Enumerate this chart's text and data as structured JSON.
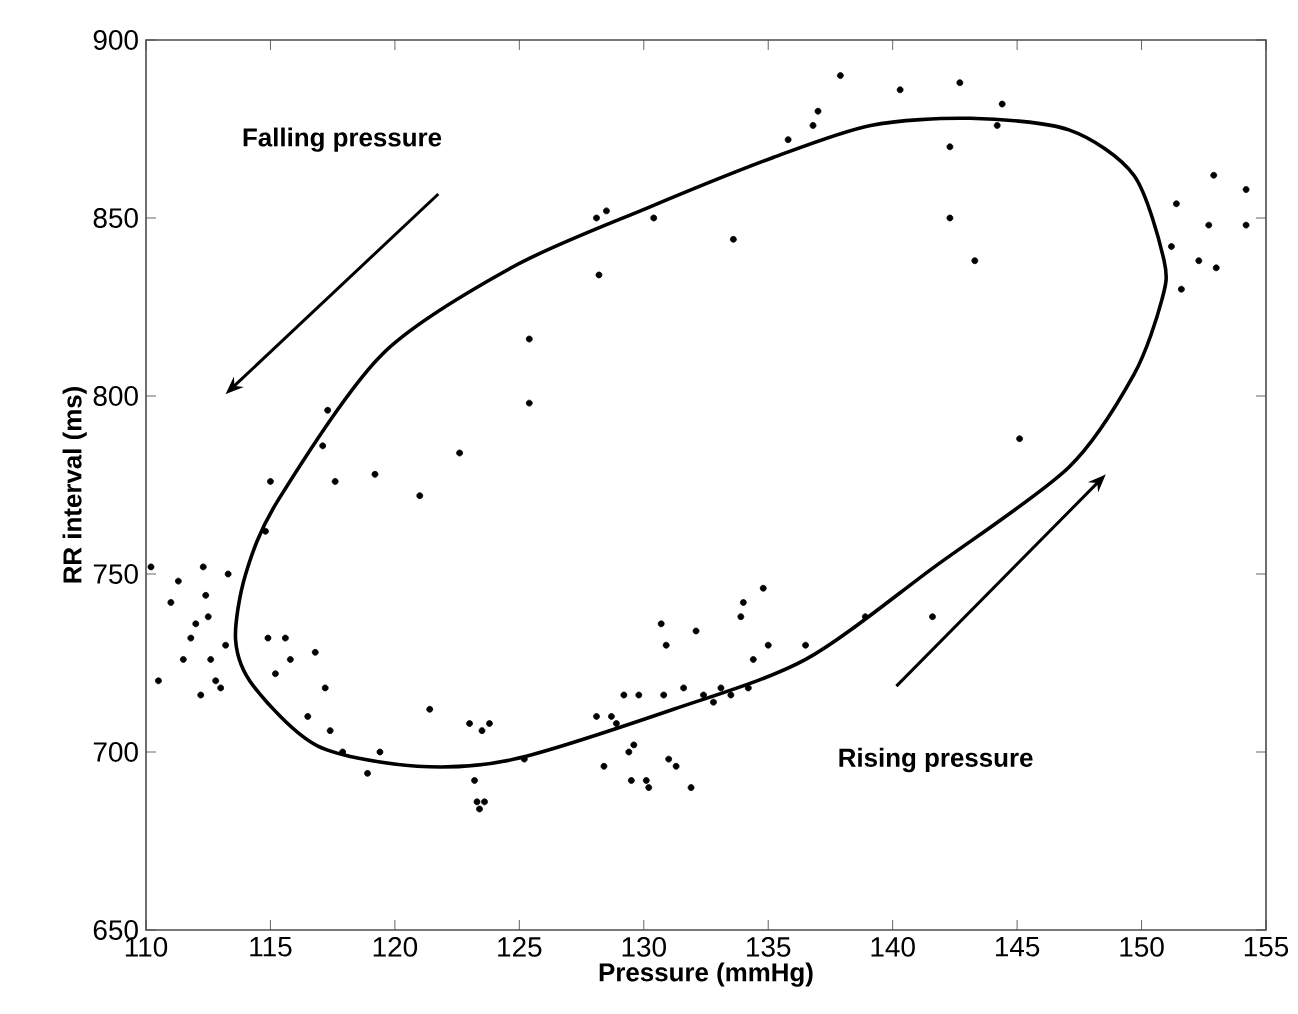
{
  "chart_data": {
    "type": "scatter",
    "xlabel": "Pressure (mmHg)",
    "ylabel": "RR interval (ms)",
    "annotations": [
      "Falling pressure",
      "Rising pressure"
    ],
    "xlim": [
      110,
      155
    ],
    "ylim": [
      650,
      900
    ],
    "xticks": [
      110,
      115,
      120,
      125,
      130,
      135,
      140,
      145,
      150,
      155
    ],
    "yticks": [
      650,
      700,
      750,
      800,
      850,
      900
    ],
    "grid": false,
    "marker": "circle",
    "series": [
      {
        "color": "#000000",
        "x": [
          110.2,
          110.5,
          111,
          111.3,
          111.5,
          111.8,
          112,
          112.2,
          112.3,
          112.4,
          112.5,
          112.6,
          112.8,
          113,
          113.3,
          113.2,
          114.8,
          115,
          114.9,
          115.2,
          115.6,
          115.8,
          116.5,
          116.8,
          117.1,
          117.3,
          117.2,
          117.4,
          117.6,
          117.9,
          119.2,
          118.9,
          119.4,
          121,
          121.4,
          122.6,
          123,
          123.2,
          123.3,
          123.4,
          123.6,
          123.5,
          123.8,
          125.4,
          125.4,
          125.2,
          128.1,
          128.2,
          128.5,
          128.1,
          128.4,
          128.7,
          128.9,
          129.2,
          129.4,
          129.5,
          129.6,
          129.8,
          130.1,
          130.2,
          130.4,
          130.7,
          130.9,
          130.8,
          131,
          131.3,
          131.6,
          131.9,
          132.1,
          132.4,
          132.8,
          133.1,
          133.5,
          133.6,
          133.9,
          134,
          134.2,
          134.4,
          134.8,
          135,
          135.8,
          136.5,
          136.8,
          137,
          137.9,
          138.9,
          140.3,
          141.6,
          142.3,
          142.3,
          142.7,
          143.3,
          144.2,
          144.4,
          145.1,
          151.2,
          151.4,
          151.6,
          152.3,
          152.9,
          152.7,
          153,
          154.2,
          154.2
        ],
        "values": [
          752,
          720,
          742,
          748,
          726,
          732,
          736,
          716,
          752,
          744,
          738,
          726,
          720,
          718,
          750,
          730,
          762,
          776,
          732,
          722,
          732,
          726,
          710,
          728,
          786,
          796,
          718,
          706,
          776,
          700,
          778,
          694,
          700,
          772,
          712,
          784,
          708,
          692,
          686,
          684,
          686,
          706,
          708,
          816,
          798,
          698,
          850,
          834,
          852,
          710,
          696,
          710,
          708,
          716,
          700,
          692,
          702,
          716,
          692,
          690,
          850,
          736,
          730,
          716,
          698,
          696,
          718,
          690,
          734,
          716,
          714,
          718,
          716,
          844,
          738,
          742,
          718,
          726,
          746,
          730,
          872,
          730,
          876,
          880,
          890,
          738,
          886,
          738,
          870,
          850,
          888,
          838,
          876,
          882,
          788,
          842,
          854,
          830,
          838,
          862,
          848,
          836,
          858,
          848
        ]
      }
    ]
  }
}
